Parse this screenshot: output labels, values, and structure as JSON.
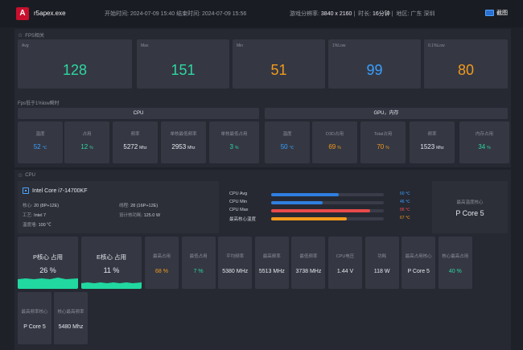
{
  "header": {
    "app_name": "r5apex.exe",
    "time_range": "开始时间: 2024-07-09 15:40  结束时间: 2024-07-09 15:56",
    "resolution_label": "游戏分辨率:",
    "resolution": "3840 x 2160",
    "duration_label": "时长:",
    "duration": "16分钟",
    "region_label": "地区:",
    "region": "广东 深圳",
    "screenshot_label": "截图"
  },
  "fps": {
    "title": "FPS相关",
    "cards": [
      {
        "label": "Avg",
        "value": "128",
        "color": "#2fd6a0"
      },
      {
        "label": "Max",
        "value": "151",
        "color": "#2fd6a0"
      },
      {
        "label": "Min",
        "value": "51",
        "color": "#f39a1c"
      },
      {
        "label": "1%Low",
        "value": "99",
        "color": "#3aa0ff"
      },
      {
        "label": "0.1%Low",
        "value": "80",
        "color": "#f39a1c"
      }
    ],
    "low_title": "Fps低于1%low瞬时"
  },
  "cpu_group": {
    "title": "CPU",
    "cells": [
      {
        "label": "温度",
        "value": "52",
        "unit": "℃",
        "color": "#3aa0ff"
      },
      {
        "label": "占用",
        "value": "12",
        "unit": "%",
        "color": "#2fd6a0"
      },
      {
        "label": "频率",
        "value": "5272",
        "unit": "Mhz",
        "color": "#e6e8ee"
      },
      {
        "label": "单核最低频率",
        "value": "2953",
        "unit": "Mhz",
        "color": "#e6e8ee"
      },
      {
        "label": "单核最低占用",
        "value": "3",
        "unit": "%",
        "color": "#2fd6a0"
      }
    ]
  },
  "gpu_group": {
    "title": "GPU，内存",
    "cells": [
      {
        "label": "温度",
        "value": "50",
        "unit": "℃",
        "color": "#3aa0ff"
      },
      {
        "label": "D3D占用",
        "value": "69",
        "unit": "%",
        "color": "#f39a1c"
      },
      {
        "label": "Total占用",
        "value": "70",
        "unit": "%",
        "color": "#f39a1c"
      },
      {
        "label": "频率",
        "value": "1523",
        "unit": "Mhz",
        "color": "#e6e8ee"
      },
      {
        "label": "内存占用",
        "value": "34",
        "unit": "%",
        "color": "#2fd6a0"
      }
    ]
  },
  "cpu": {
    "title": "CPU",
    "model": "Intel Core i7-14700KF",
    "cores_label": "核心:",
    "cores": "20 (8P+12E)",
    "threads_label": "线程:",
    "threads": "28 (16P+12E)",
    "process_label": "工艺:",
    "process": "Intel 7",
    "tdp_label": "设计热功耗:",
    "tdp": "125.0 W",
    "tjmax_label": "温度墙:",
    "tjmax": "100 ℃",
    "bars": [
      {
        "label": "CPU Avg",
        "value": "60 ℃",
        "fill": 0.6,
        "color": "#2f7fe0",
        "vcolor": "#3aa0ff"
      },
      {
        "label": "CPU Min",
        "value": "46 ℃",
        "fill": 0.46,
        "color": "#2f7fe0",
        "vcolor": "#3aa0ff"
      },
      {
        "label": "CPU Max",
        "value": "88 ℃",
        "fill": 0.88,
        "color": "#e84a4a",
        "vcolor": "#e84a4a"
      },
      {
        "label": "最高核心温度",
        "value": "67 ℃",
        "fill": 0.67,
        "color": "#f39a1c",
        "vcolor": "#f39a1c"
      }
    ],
    "hottest_label": "最高温度核心",
    "hottest": "P Core 5",
    "p_usage_label": "P核心 占用",
    "p_usage": "26 %",
    "e_usage_label": "E核心 占用",
    "e_usage": "11 %",
    "stats": [
      {
        "label": "最高占用",
        "value": "68 %",
        "color": "#f39a1c"
      },
      {
        "label": "最低占用",
        "value": "7 %",
        "color": "#2fd6a0"
      },
      {
        "label": "平均频率",
        "value": "5380 MHz",
        "color": "#e6e8ee"
      },
      {
        "label": "最高频率",
        "value": "5513 MHz",
        "color": "#e6e8ee"
      },
      {
        "label": "最低频率",
        "value": "3738 MHz",
        "color": "#e6e8ee"
      },
      {
        "label": "CPU电压",
        "value": "1.44 V",
        "color": "#e6e8ee"
      },
      {
        "label": "功耗",
        "value": "118 W",
        "color": "#e6e8ee"
      },
      {
        "label": "最高占用核心",
        "value": "P Core 5",
        "color": "#e6e8ee"
      },
      {
        "label": "核心最高占用",
        "value": "40 %",
        "color": "#2fd6a0"
      }
    ],
    "stats2": [
      {
        "label": "最高频率核心",
        "value": "P Core 5",
        "color": "#e6e8ee"
      },
      {
        "label": "核心最高频率",
        "value": "5480 Mhz",
        "color": "#e6e8ee"
      }
    ]
  }
}
